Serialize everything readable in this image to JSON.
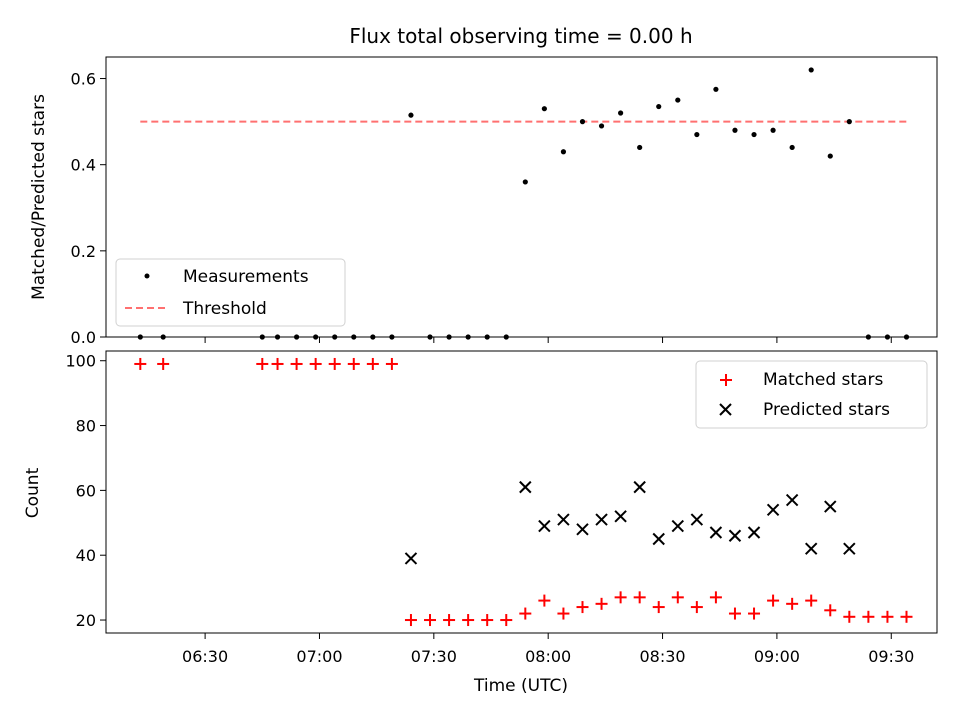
{
  "chart_data": [
    {
      "type": "scatter",
      "title": "Flux total observing time = 0.00 h",
      "xlabel": "",
      "ylabel": "Matched/Predicted stars",
      "ylim": [
        0,
        0.65
      ],
      "yticks": [
        "0.0",
        "0.2",
        "0.4",
        "0.6"
      ],
      "legend_position": "lower-left",
      "series": [
        {
          "name": "Measurements",
          "marker": "dot",
          "color": "#000000",
          "points": [
            [
              "06:13",
              0
            ],
            [
              "06:19",
              0
            ],
            [
              "06:45",
              0
            ],
            [
              "06:49",
              0
            ],
            [
              "06:54",
              0
            ],
            [
              "06:59",
              0
            ],
            [
              "07:04",
              0
            ],
            [
              "07:09",
              0
            ],
            [
              "07:14",
              0
            ],
            [
              "07:19",
              0
            ],
            [
              "07:24",
              0.515
            ],
            [
              "07:29",
              0
            ],
            [
              "07:34",
              0
            ],
            [
              "07:39",
              0
            ],
            [
              "07:44",
              0
            ],
            [
              "07:49",
              0
            ],
            [
              "07:54",
              0.36
            ],
            [
              "07:59",
              0.53
            ],
            [
              "08:04",
              0.43
            ],
            [
              "08:09",
              0.5
            ],
            [
              "08:14",
              0.49
            ],
            [
              "08:19",
              0.52
            ],
            [
              "08:24",
              0.44
            ],
            [
              "08:29",
              0.535
            ],
            [
              "08:34",
              0.55
            ],
            [
              "08:39",
              0.47
            ],
            [
              "08:44",
              0.575
            ],
            [
              "08:49",
              0.48
            ],
            [
              "08:54",
              0.47
            ],
            [
              "08:59",
              0.48
            ],
            [
              "09:04",
              0.44
            ],
            [
              "09:09",
              0.62
            ],
            [
              "09:14",
              0.42
            ],
            [
              "09:19",
              0.5
            ],
            [
              "09:24",
              0
            ],
            [
              "09:29",
              0
            ],
            [
              "09:34",
              0
            ]
          ]
        },
        {
          "name": "Threshold",
          "style": "dashed",
          "color": "#ff7070",
          "x": [
            "06:13",
            "09:34"
          ],
          "y": [
            0.5,
            0.5
          ]
        }
      ]
    },
    {
      "type": "scatter",
      "title": "",
      "xlabel": "Time (UTC)",
      "ylabel": "Count",
      "ylim": [
        16,
        103
      ],
      "yticks": [
        "20",
        "40",
        "60",
        "80",
        "100"
      ],
      "xlim": [
        "06:04",
        "09:42"
      ],
      "xticks": [
        "06:30",
        "07:00",
        "07:30",
        "08:00",
        "08:30",
        "09:00",
        "09:30"
      ],
      "legend_position": "upper-right",
      "series": [
        {
          "name": "Matched stars",
          "marker": "+",
          "color": "#ff0000",
          "points": [
            [
              "06:13",
              99
            ],
            [
              "06:19",
              99
            ],
            [
              "06:45",
              99
            ],
            [
              "06:49",
              99
            ],
            [
              "06:54",
              99
            ],
            [
              "06:59",
              99
            ],
            [
              "07:04",
              99
            ],
            [
              "07:09",
              99
            ],
            [
              "07:14",
              99
            ],
            [
              "07:19",
              99
            ],
            [
              "07:24",
              20
            ],
            [
              "07:29",
              20
            ],
            [
              "07:34",
              20
            ],
            [
              "07:39",
              20
            ],
            [
              "07:44",
              20
            ],
            [
              "07:49",
              20
            ],
            [
              "07:54",
              22
            ],
            [
              "07:59",
              26
            ],
            [
              "08:04",
              22
            ],
            [
              "08:09",
              24
            ],
            [
              "08:14",
              25
            ],
            [
              "08:19",
              27
            ],
            [
              "08:24",
              27
            ],
            [
              "08:29",
              24
            ],
            [
              "08:34",
              27
            ],
            [
              "08:39",
              24
            ],
            [
              "08:44",
              27
            ],
            [
              "08:49",
              22
            ],
            [
              "08:54",
              22
            ],
            [
              "08:59",
              26
            ],
            [
              "09:04",
              25
            ],
            [
              "09:09",
              26
            ],
            [
              "09:14",
              23
            ],
            [
              "09:19",
              21
            ],
            [
              "09:24",
              21
            ],
            [
              "09:29",
              21
            ],
            [
              "09:34",
              21
            ]
          ]
        },
        {
          "name": "Predicted stars",
          "marker": "x",
          "color": "#000000",
          "points": [
            [
              "07:24",
              39
            ],
            [
              "07:54",
              61
            ],
            [
              "07:59",
              49
            ],
            [
              "08:04",
              51
            ],
            [
              "08:09",
              48
            ],
            [
              "08:14",
              51
            ],
            [
              "08:19",
              52
            ],
            [
              "08:24",
              61
            ],
            [
              "08:29",
              45
            ],
            [
              "08:34",
              49
            ],
            [
              "08:39",
              51
            ],
            [
              "08:44",
              47
            ],
            [
              "08:49",
              46
            ],
            [
              "08:54",
              47
            ],
            [
              "08:59",
              54
            ],
            [
              "09:04",
              57
            ],
            [
              "09:09",
              42
            ],
            [
              "09:14",
              55
            ],
            [
              "09:19",
              42
            ]
          ]
        }
      ]
    }
  ]
}
